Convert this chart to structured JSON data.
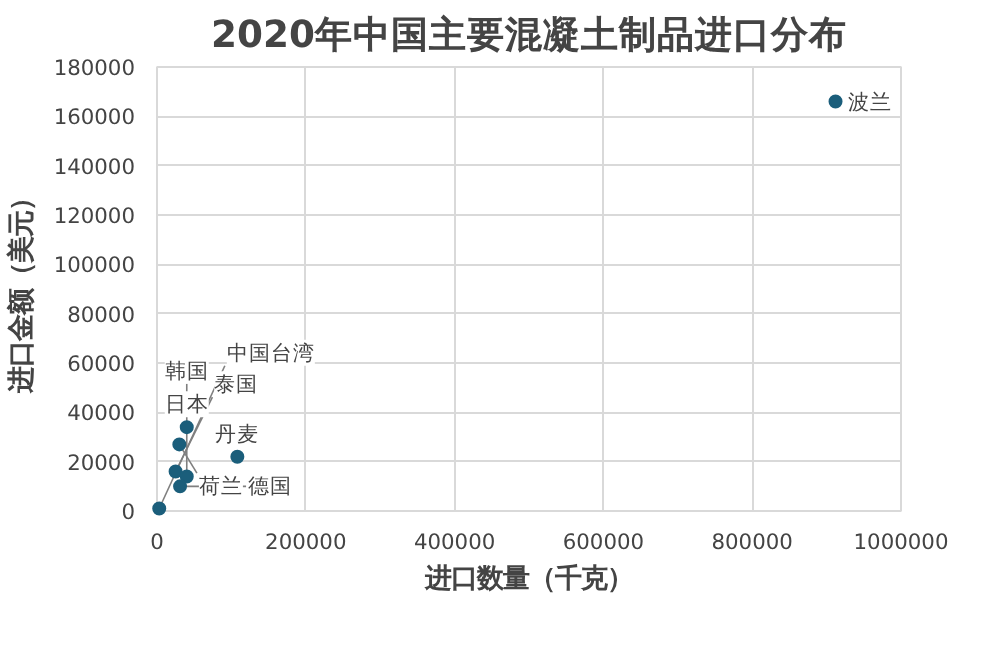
{
  "chart_data": {
    "type": "scatter",
    "title": "2020年中国主要混凝土制品进口分布",
    "xlabel": "进口数量（千克）",
    "ylabel": "进口金额（美元）",
    "x": [
      912000,
      40000,
      30000,
      108000,
      25000,
      40000,
      31000,
      3000
    ],
    "series": [
      {
        "color": "#1b5e7b",
        "values": [
          166000,
          34000,
          27000,
          22000,
          16000,
          14000,
          10000,
          1000
        ]
      }
    ],
    "annotations": [
      {
        "text": "波兰",
        "x": 912000,
        "y": 166000
      },
      {
        "text": "日本",
        "x": 40000,
        "y": 34000
      },
      {
        "text": "荷兰",
        "x": 30000,
        "y": 27000
      },
      {
        "text": "丹麦",
        "x": 108000,
        "y": 22000
      },
      {
        "text": "泰国",
        "x": 25000,
        "y": 16000
      },
      {
        "text": "韩国",
        "x": 40000,
        "y": 14000
      },
      {
        "text": "德国",
        "x": 31000,
        "y": 10000
      },
      {
        "text": "中国台湾",
        "x": 3000,
        "y": 1000
      }
    ],
    "xlim": [
      0,
      1000000
    ],
    "xticks": [
      0,
      200000,
      400000,
      600000,
      800000,
      1000000
    ],
    "ylim": [
      0,
      180000
    ],
    "yticks": [
      0,
      20000,
      40000,
      60000,
      80000,
      100000,
      120000,
      140000,
      160000,
      180000
    ],
    "grid": true,
    "marker": "circle"
  }
}
